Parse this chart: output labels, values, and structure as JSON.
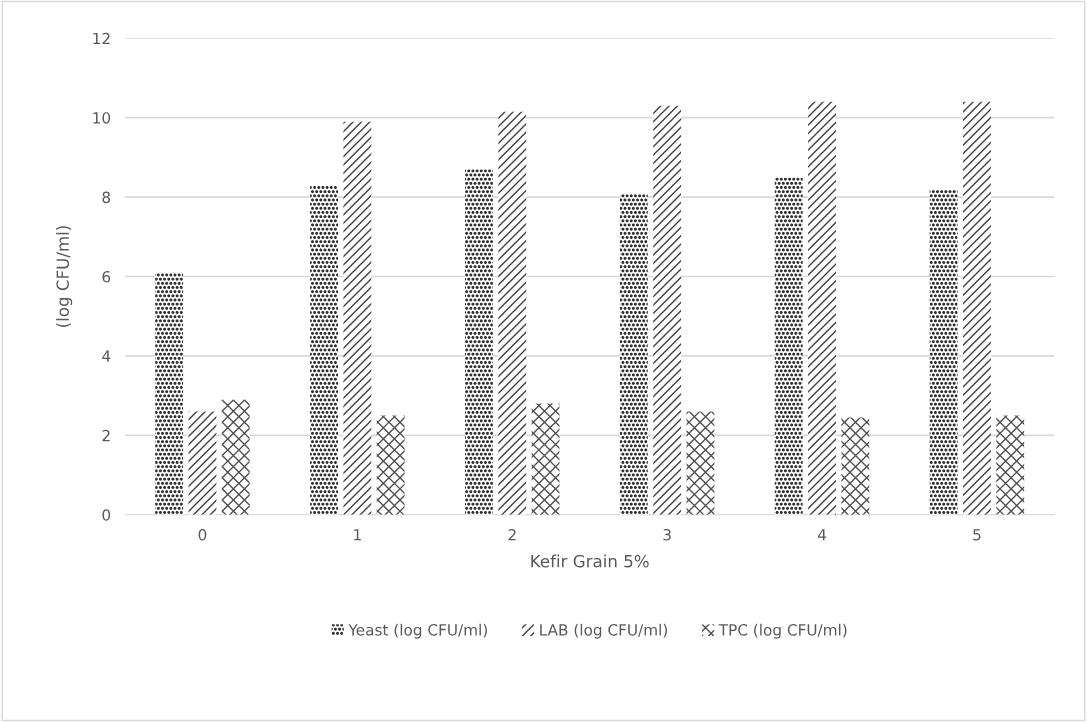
{
  "chart_data": {
    "type": "bar",
    "xlabel": "Kefir Grain 5%",
    "ylabel": "(log CFU/ml)",
    "categories": [
      "0",
      "1",
      "2",
      "3",
      "4",
      "5"
    ],
    "series": [
      {
        "name": "Yeast (log CFU/ml)",
        "color": "#303030",
        "values": [
          6.1,
          8.3,
          8.7,
          8.1,
          8.5,
          8.2
        ]
      },
      {
        "name": "LAB (log CFU/ml)",
        "color": "#404040",
        "values": [
          2.6,
          9.9,
          10.15,
          10.3,
          10.4,
          10.4
        ]
      },
      {
        "name": "TPC (log CFU/ml)",
        "color": "#505050",
        "values": [
          2.9,
          2.5,
          2.8,
          2.6,
          2.45,
          2.5
        ]
      }
    ],
    "ylim": [
      0,
      12
    ],
    "yticks": [
      0,
      2,
      4,
      6,
      8,
      10,
      12
    ],
    "grid": "y",
    "legend": "bottom"
  }
}
